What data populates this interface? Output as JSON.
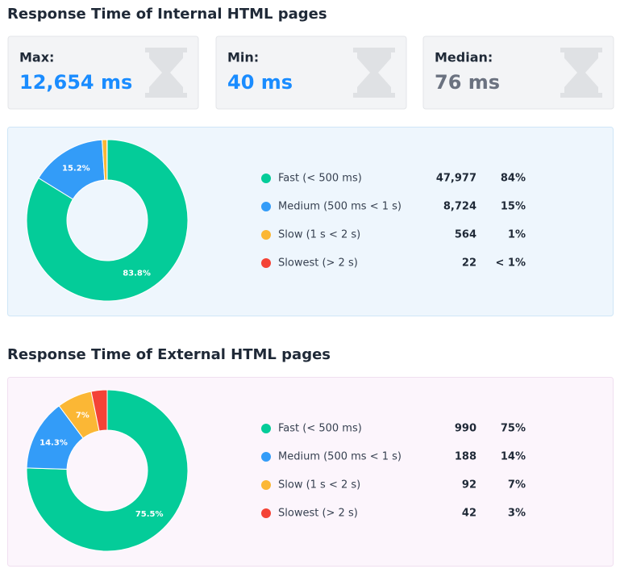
{
  "stats": [
    {
      "label": "Max:",
      "value": "12,654 ms"
    },
    {
      "label": "Min:",
      "value": "40 ms"
    },
    {
      "label": "Median:",
      "value": "76 ms"
    }
  ],
  "chart_data": [
    {
      "type": "pie",
      "title": "Response Time of Internal HTML pages",
      "categories": [
        "Fast (< 500 ms)",
        "Medium (500 ms < 1 s)",
        "Slow (1 s < 2 s)",
        "Slowest (> 2 s)"
      ],
      "values": [
        83.8,
        15.2,
        0.98,
        0.04
      ],
      "value_labels": [
        "83.8%",
        "15.2%",
        null,
        null
      ],
      "colors": [
        "#04cc99",
        "#339cf8",
        "#fbb735",
        "#f44336"
      ],
      "counts": [
        "47,977",
        "8,724",
        "564",
        "22"
      ],
      "shares": [
        "84%",
        "15%",
        "1%",
        "< 1%"
      ]
    },
    {
      "type": "pie",
      "title": "Response Time of External HTML pages",
      "categories": [
        "Fast (< 500 ms)",
        "Medium (500 ms < 1 s)",
        "Slow (1 s < 2 s)",
        "Slowest (> 2 s)"
      ],
      "values": [
        75.5,
        14.3,
        7,
        3.2
      ],
      "value_labels": [
        "75.5%",
        "14.3%",
        "7%",
        null
      ],
      "colors": [
        "#04cc99",
        "#339cf8",
        "#fbb735",
        "#f44336"
      ],
      "counts": [
        "990",
        "188",
        "92",
        "42"
      ],
      "shares": [
        "75%",
        "14%",
        "7%",
        "3%"
      ]
    }
  ]
}
